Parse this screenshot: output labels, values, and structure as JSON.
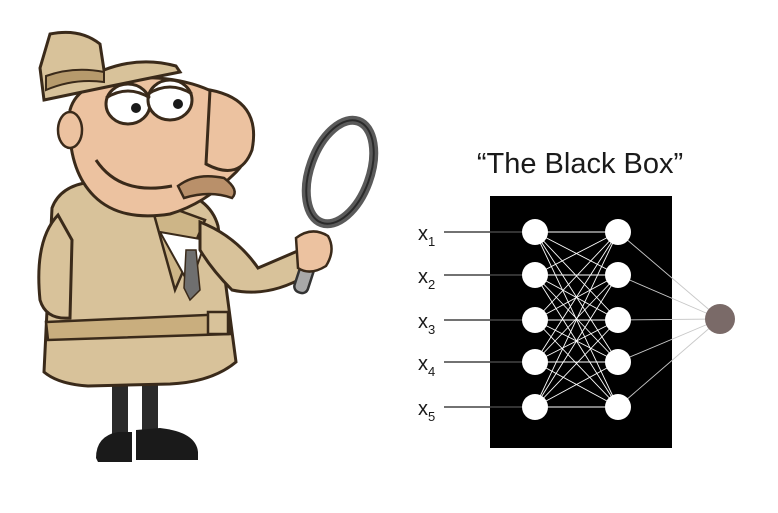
{
  "title": "“The Black Box”",
  "inputs": [
    {
      "base": "x",
      "sub": "1"
    },
    {
      "base": "x",
      "sub": "2"
    },
    {
      "base": "x",
      "sub": "3"
    },
    {
      "base": "x",
      "sub": "4"
    },
    {
      "base": "x",
      "sub": "5"
    }
  ],
  "network": {
    "layers": [
      5,
      5,
      1
    ],
    "box_color": "#000000",
    "node_color": "#ffffff",
    "output_node_color": "#7a6a68",
    "edge_color": "#ffffff",
    "input_line_color": "#444444"
  },
  "illustration": {
    "subject": "detective-with-magnifying-glass",
    "coat_color": "#d8c29a",
    "skin_color": "#ecc2a0"
  }
}
